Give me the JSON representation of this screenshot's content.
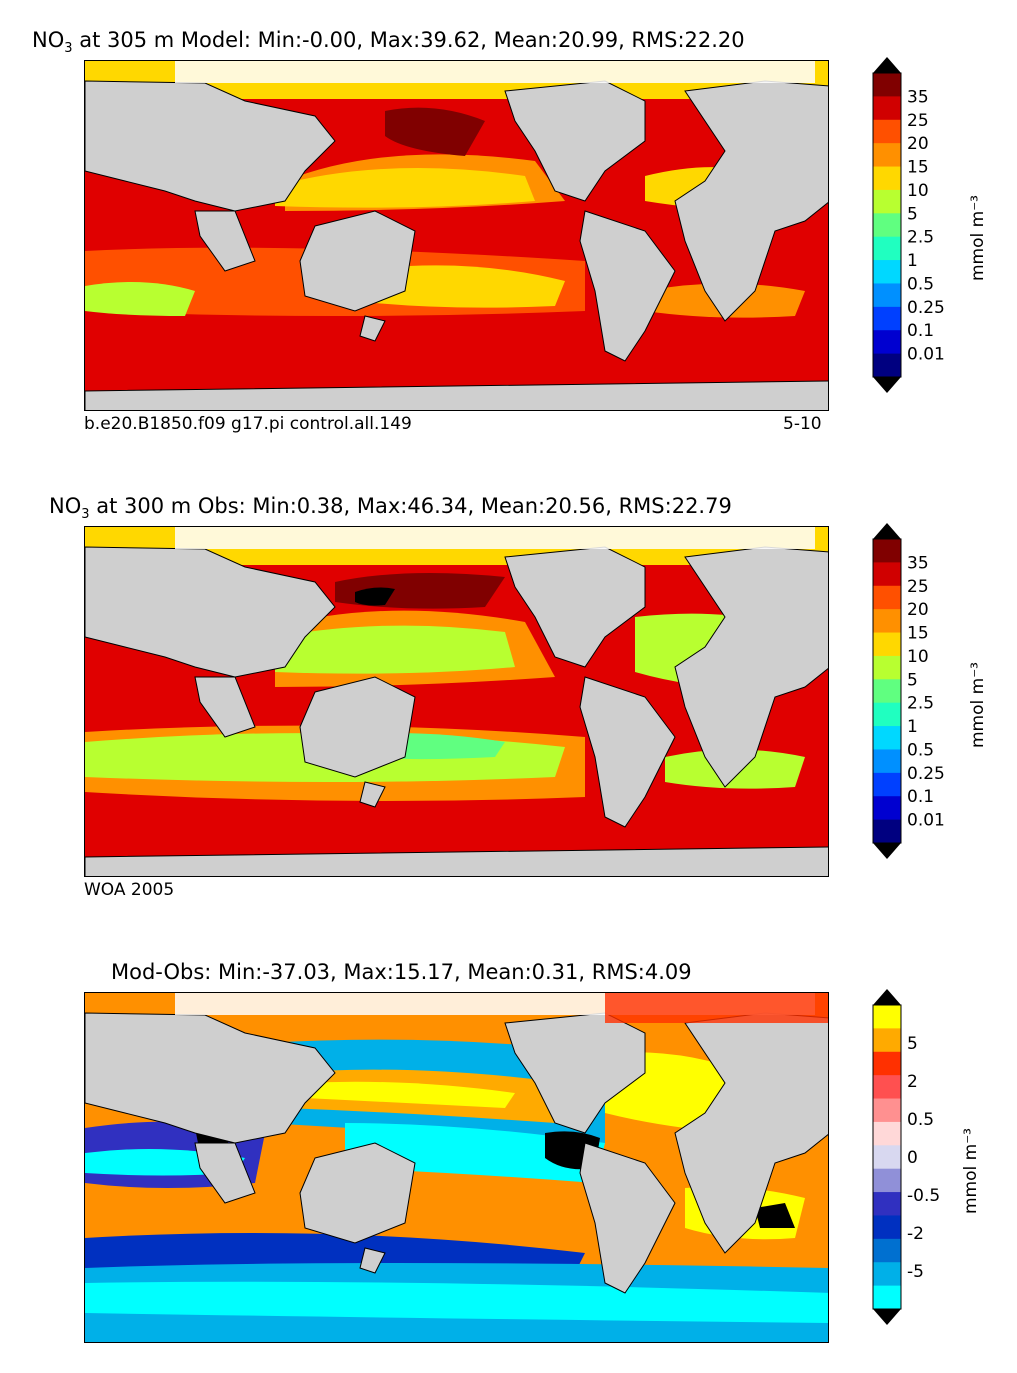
{
  "chart_data": [
    {
      "type": "heatmap",
      "variable_symbol": "NO",
      "variable_subscript": "3",
      "title_rest": " at 305 m Model: Min:-0.00, Max:39.62, Mean:20.99, RMS:22.20",
      "caption_left": "b.e20.B1850.f09 g17.pi control.all.149",
      "caption_right": "5-10",
      "colorbar_label": "mmol m⁻³",
      "colorbar_ticks": [
        "35",
        "25",
        "20",
        "15",
        "10",
        "5",
        "2.5",
        "1",
        "0.5",
        "0.25",
        "0.1",
        "0.01"
      ],
      "colorbar_colors": [
        "#800000",
        "#d00000",
        "#ff5000",
        "#ff9000",
        "#ffd800",
        "#b8ff30",
        "#60ff80",
        "#20ffc0",
        "#00d8ff",
        "#0090ff",
        "#0040ff",
        "#0000d0",
        "#000080"
      ],
      "stats": {
        "min": -0.0,
        "max": 39.62,
        "mean": 20.99,
        "rms": 22.2
      },
      "depth_m": 305
    },
    {
      "type": "heatmap",
      "variable_symbol": "NO",
      "variable_subscript": "3",
      "title_rest": " at 300 m Obs: Min:0.38, Max:46.34, Mean:20.56, RMS:22.79",
      "caption_left": "WOA 2005",
      "caption_right": "",
      "colorbar_label": "mmol m⁻³",
      "colorbar_ticks": [
        "35",
        "25",
        "20",
        "15",
        "10",
        "5",
        "2.5",
        "1",
        "0.5",
        "0.25",
        "0.1",
        "0.01"
      ],
      "colorbar_colors": [
        "#800000",
        "#d00000",
        "#ff5000",
        "#ff9000",
        "#ffd800",
        "#b8ff30",
        "#60ff80",
        "#20ffc0",
        "#00d8ff",
        "#0090ff",
        "#0040ff",
        "#0000d0",
        "#000080"
      ],
      "stats": {
        "min": 0.38,
        "max": 46.34,
        "mean": 20.56,
        "rms": 22.79
      },
      "depth_m": 300
    },
    {
      "type": "heatmap",
      "variable_symbol": "",
      "variable_subscript": "",
      "title_rest": "Mod-Obs: Min:-37.03, Max:15.17, Mean:0.31, RMS:4.09",
      "caption_left": "",
      "caption_right": "",
      "colorbar_label": "mmol m⁻³",
      "colorbar_ticks": [
        "5",
        "2",
        "0.5",
        "0",
        "-0.5",
        "-2",
        "-5"
      ],
      "colorbar_colors": [
        "#ffff00",
        "#ffaa00",
        "#ff3000",
        "#ff5050",
        "#ff9090",
        "#ffd8d8",
        "#d8d8f0",
        "#9090d8",
        "#3030c0",
        "#0030c0",
        "#0070d0",
        "#00b0e8",
        "#00ffff"
      ],
      "stats": {
        "min": -37.03,
        "max": 15.17,
        "mean": 0.31,
        "rms": 4.09
      }
    }
  ],
  "colors": {
    "land": "#cfcfcf",
    "missing": "#ffffff",
    "coast": "#000000"
  }
}
